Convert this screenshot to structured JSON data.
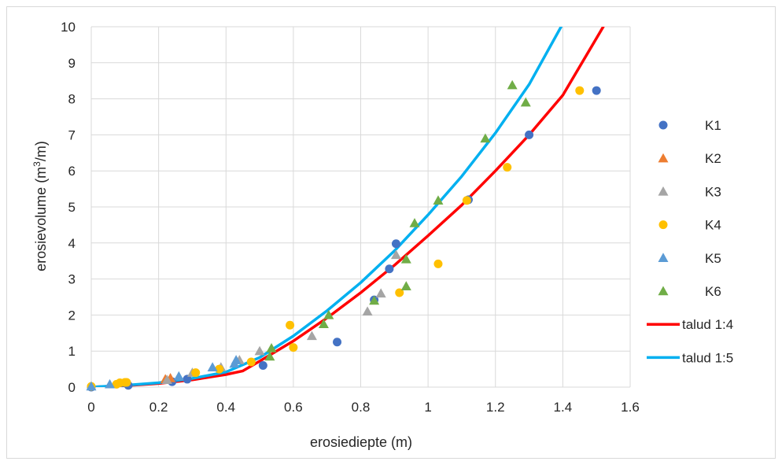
{
  "chart_data": {
    "type": "scatter",
    "title": "",
    "xlabel": "erosiediepte (m)",
    "ylabel_parts": {
      "pre": "erosievolume (m",
      "sup": "3",
      "post": "/m)"
    },
    "xlim": [
      0,
      1.6
    ],
    "ylim": [
      0,
      10
    ],
    "xticks": [
      0,
      0.2,
      0.4,
      0.6,
      0.8,
      1,
      1.2,
      1.4,
      1.6
    ],
    "xtick_labels": [
      "0",
      "0.2",
      "0.4",
      "0.6",
      "0.8",
      "1",
      "1.2",
      "1.4",
      "1.6"
    ],
    "yticks": [
      0,
      1,
      2,
      3,
      4,
      5,
      6,
      7,
      8,
      9,
      10
    ],
    "ytick_labels": [
      "0",
      "1",
      "2",
      "3",
      "4",
      "5",
      "6",
      "7",
      "8",
      "9",
      "10"
    ],
    "grid": true,
    "legend_position": "right",
    "series": [
      {
        "name": "K1",
        "marker": "circle",
        "color": "#4472c4",
        "points": [
          [
            0,
            0
          ],
          [
            0.11,
            0.05
          ],
          [
            0.24,
            0.15
          ],
          [
            0.285,
            0.22
          ],
          [
            0.51,
            0.6
          ],
          [
            0.73,
            1.25
          ],
          [
            0.84,
            2.42
          ],
          [
            0.885,
            3.28
          ],
          [
            0.905,
            3.98
          ],
          [
            1.12,
            5.2
          ],
          [
            1.3,
            7.0
          ],
          [
            1.5,
            8.23
          ]
        ]
      },
      {
        "name": "K2",
        "marker": "triangle",
        "color": "#ed7d31",
        "points": [
          [
            0.22,
            0.22
          ],
          [
            0.235,
            0.25
          ]
        ]
      },
      {
        "name": "K3",
        "marker": "triangle",
        "color": "#a5a5a5",
        "points": [
          [
            0.225,
            0.2
          ],
          [
            0.3,
            0.4
          ],
          [
            0.385,
            0.55
          ],
          [
            0.44,
            0.75
          ],
          [
            0.5,
            1.0
          ],
          [
            0.655,
            1.42
          ],
          [
            0.82,
            2.1
          ],
          [
            0.86,
            2.6
          ],
          [
            0.905,
            3.67
          ]
        ]
      },
      {
        "name": "K4",
        "marker": "circle",
        "color": "#ffc000",
        "points": [
          [
            0,
            0.02
          ],
          [
            0.075,
            0.08
          ],
          [
            0.085,
            0.12
          ],
          [
            0.1,
            0.13
          ],
          [
            0.105,
            0.13
          ],
          [
            0.31,
            0.4
          ],
          [
            0.38,
            0.5
          ],
          [
            0.475,
            0.7
          ],
          [
            0.59,
            1.72
          ],
          [
            0.6,
            1.1
          ],
          [
            0.915,
            2.62
          ],
          [
            1.03,
            3.42
          ],
          [
            1.115,
            5.18
          ],
          [
            1.235,
            6.1
          ],
          [
            1.45,
            8.23
          ]
        ]
      },
      {
        "name": "K5",
        "marker": "triangle",
        "color": "#5b9bd5",
        "points": [
          [
            0,
            0.02
          ],
          [
            0.055,
            0.08
          ],
          [
            0.26,
            0.3
          ],
          [
            0.36,
            0.55
          ],
          [
            0.425,
            0.65
          ],
          [
            0.43,
            0.75
          ]
        ]
      },
      {
        "name": "K6",
        "marker": "triangle",
        "color": "#70ad47",
        "points": [
          [
            0.53,
            0.85
          ],
          [
            0.535,
            1.08
          ],
          [
            0.69,
            1.75
          ],
          [
            0.705,
            2.0
          ],
          [
            0.84,
            2.4
          ],
          [
            0.935,
            2.8
          ],
          [
            0.935,
            3.55
          ],
          [
            0.96,
            4.55
          ],
          [
            1.03,
            5.18
          ],
          [
            1.17,
            6.9
          ],
          [
            1.25,
            8.38
          ],
          [
            1.29,
            7.9
          ]
        ]
      },
      {
        "name": "talud 1:4",
        "marker": "line",
        "color": "#ff0000",
        "points": [
          [
            0,
            0
          ],
          [
            0.1,
            0.04
          ],
          [
            0.2,
            0.1
          ],
          [
            0.3,
            0.2
          ],
          [
            0.4,
            0.35
          ],
          [
            0.45,
            0.45
          ],
          [
            0.5,
            0.72
          ],
          [
            0.6,
            1.28
          ],
          [
            0.7,
            1.92
          ],
          [
            0.8,
            2.62
          ],
          [
            0.9,
            3.38
          ],
          [
            1.0,
            4.2
          ],
          [
            1.1,
            5.05
          ],
          [
            1.2,
            6.0
          ],
          [
            1.3,
            7.0
          ],
          [
            1.4,
            8.1
          ],
          [
            1.52,
            10.0
          ]
        ]
      },
      {
        "name": "talud 1:5",
        "marker": "line",
        "color": "#00b0f0",
        "points": [
          [
            0,
            0
          ],
          [
            0.1,
            0.05
          ],
          [
            0.2,
            0.12
          ],
          [
            0.3,
            0.24
          ],
          [
            0.4,
            0.42
          ],
          [
            0.5,
            0.82
          ],
          [
            0.6,
            1.42
          ],
          [
            0.7,
            2.12
          ],
          [
            0.8,
            2.9
          ],
          [
            0.9,
            3.78
          ],
          [
            1.0,
            4.78
          ],
          [
            1.1,
            5.85
          ],
          [
            1.2,
            7.05
          ],
          [
            1.3,
            8.4
          ],
          [
            1.395,
            10.0
          ]
        ]
      }
    ]
  }
}
